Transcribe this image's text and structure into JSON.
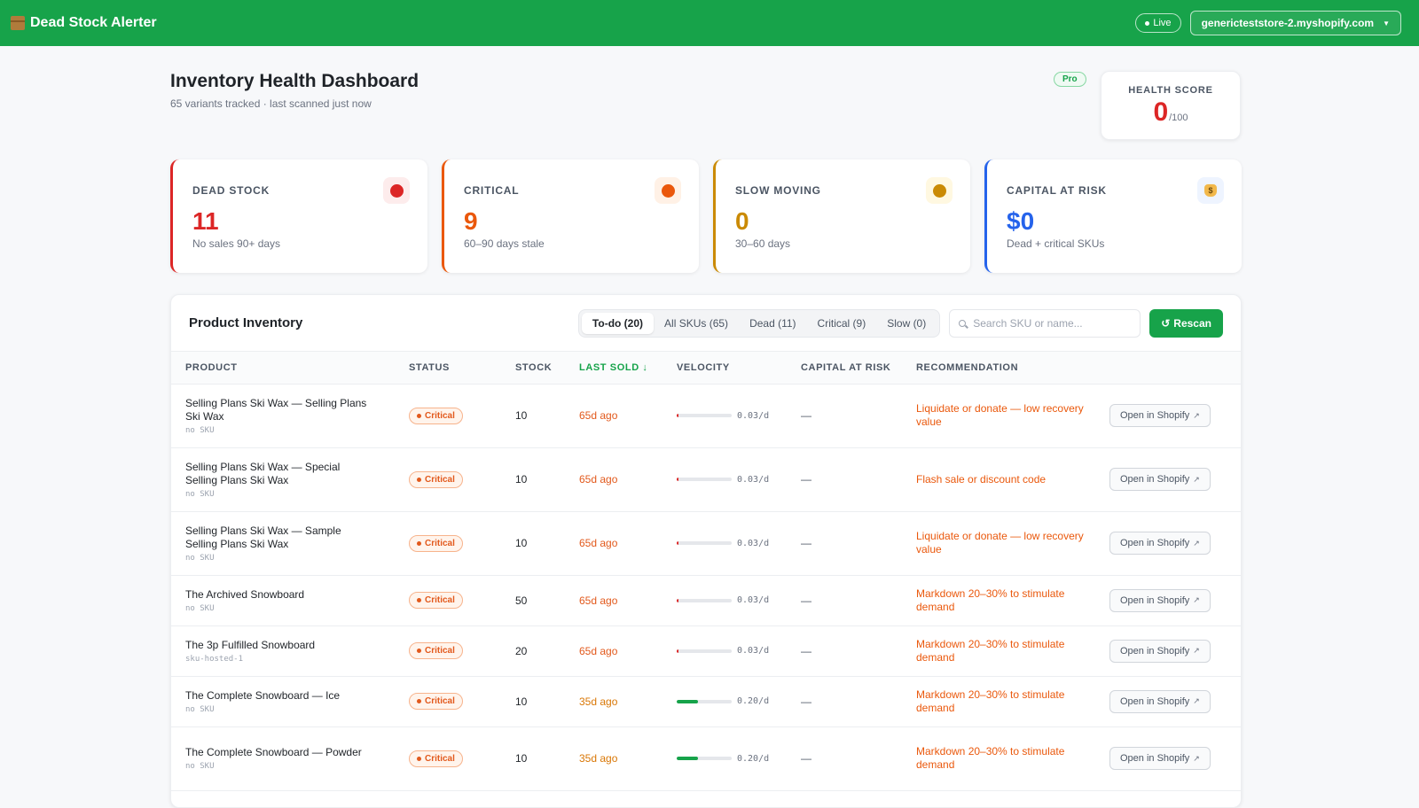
{
  "app": {
    "name": "Dead Stock Alerter",
    "live_label": "Live",
    "store": "genericteststore-2.myshopify.com"
  },
  "header": {
    "title": "Inventory Health Dashboard",
    "subtitle": "65 variants tracked · last scanned just now",
    "plan_badge": "Pro",
    "health_label": "HEALTH SCORE",
    "health_value": "0",
    "health_max": "/100"
  },
  "cards": [
    {
      "label": "DEAD STOCK",
      "value": "11",
      "note": "No sales 90+ days",
      "color": "#dc2626",
      "icon": "red-circle-icon"
    },
    {
      "label": "CRITICAL",
      "value": "9",
      "note": "60–90 days stale",
      "color": "#ea580c",
      "icon": "orange-circle-icon"
    },
    {
      "label": "SLOW MOVING",
      "value": "0",
      "note": "30–60 days",
      "color": "#ca8a04",
      "icon": "yellow-circle-icon"
    },
    {
      "label": "CAPITAL AT RISK",
      "value": "$0",
      "note": "Dead + critical SKUs",
      "color": "#2563eb",
      "icon": "money-bag-icon"
    }
  ],
  "inventory": {
    "title": "Product Inventory",
    "tabs": [
      {
        "label": "To-do (20)",
        "active": true
      },
      {
        "label": "All SKUs (65)",
        "active": false
      },
      {
        "label": "Dead (11)",
        "active": false
      },
      {
        "label": "Critical (9)",
        "active": false
      },
      {
        "label": "Slow (0)",
        "active": false
      }
    ],
    "search_placeholder": "Search SKU or name...",
    "rescan_label": "Rescan",
    "columns": {
      "product": "PRODUCT",
      "status": "STATUS",
      "stock": "STOCK",
      "last_sold": "LAST SOLD ↓",
      "velocity": "VELOCITY",
      "capital": "CAPITAL AT RISK",
      "recommendation": "RECOMMENDATION"
    },
    "action_label": "Open in Shopify",
    "rows": [
      {
        "name": "Selling Plans Ski Wax — Selling Plans Ski Wax",
        "sku": "no SKU",
        "status": "Critical",
        "stock": "10",
        "last_sold": "65d ago",
        "last_color": "#e2591c",
        "velocity": "0.03/d",
        "velocity_fraction": 0.03,
        "capital": "—",
        "recommendation": "Liquidate or donate — low recovery value"
      },
      {
        "name": "Selling Plans Ski Wax — Special Selling Plans Ski Wax",
        "sku": "no SKU",
        "status": "Critical",
        "stock": "10",
        "last_sold": "65d ago",
        "last_color": "#e2591c",
        "velocity": "0.03/d",
        "velocity_fraction": 0.03,
        "capital": "—",
        "recommendation": "Flash sale or discount code"
      },
      {
        "name": "Selling Plans Ski Wax — Sample Selling Plans Ski Wax",
        "sku": "no SKU",
        "status": "Critical",
        "stock": "10",
        "last_sold": "65d ago",
        "last_color": "#e2591c",
        "velocity": "0.03/d",
        "velocity_fraction": 0.03,
        "capital": "—",
        "recommendation": "Liquidate or donate — low recovery value"
      },
      {
        "name": "The Archived Snowboard",
        "sku": "no SKU",
        "status": "Critical",
        "stock": "50",
        "last_sold": "65d ago",
        "last_color": "#e2591c",
        "velocity": "0.03/d",
        "velocity_fraction": 0.03,
        "capital": "—",
        "recommendation": "Markdown 20–30% to stimulate demand"
      },
      {
        "name": "The 3p Fulfilled Snowboard",
        "sku": "sku-hosted-1",
        "status": "Critical",
        "stock": "20",
        "last_sold": "65d ago",
        "last_color": "#e2591c",
        "velocity": "0.03/d",
        "velocity_fraction": 0.03,
        "capital": "—",
        "recommendation": "Markdown 20–30% to stimulate demand"
      },
      {
        "name": "The Complete Snowboard — Ice",
        "sku": "no SKU",
        "status": "Critical",
        "stock": "10",
        "last_sold": "35d ago",
        "last_color": "#d97706",
        "velocity": "0.20/d",
        "velocity_fraction": 0.38,
        "capital": "—",
        "recommendation": "Markdown 20–30% to stimulate demand"
      },
      {
        "name": "The Complete Snowboard — Powder",
        "sku": "no SKU",
        "status": "Critical",
        "stock": "10",
        "last_sold": "35d ago",
        "last_color": "#d97706",
        "velocity": "0.20/d",
        "velocity_fraction": 0.38,
        "capital": "—",
        "recommendation": "Markdown 20–30% to stimulate demand"
      }
    ]
  }
}
